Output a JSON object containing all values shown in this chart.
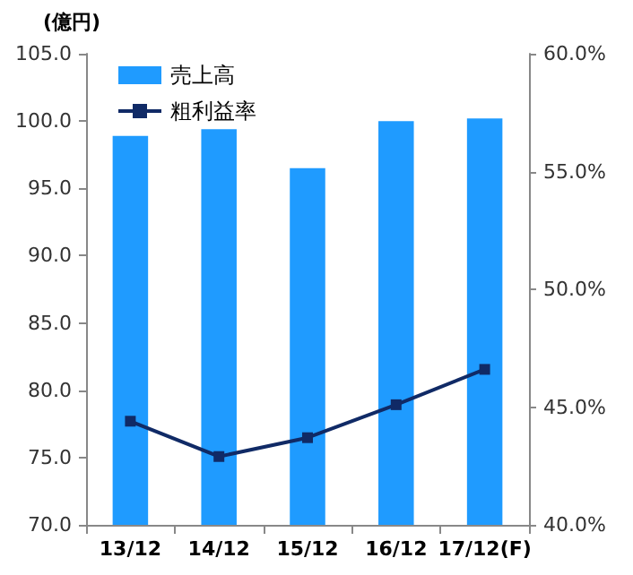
{
  "chart_data": {
    "type": "bar",
    "ylabel": "(億円)",
    "categories": [
      "13/12",
      "14/12",
      "15/12",
      "16/12",
      "17/12(F)"
    ],
    "series": [
      {
        "name": "売上高",
        "type": "bar",
        "color": "#1f9bff",
        "values": [
          98.9,
          99.4,
          96.5,
          100.0,
          100.2
        ]
      },
      {
        "name": "粗利益率",
        "type": "line",
        "axis": "y2",
        "color": "#102a66",
        "marker": "square",
        "values": [
          44.4,
          42.9,
          43.7,
          45.1,
          46.6
        ]
      }
    ],
    "ylim": [
      70,
      105
    ],
    "yticks": [
      {
        "value": 70,
        "label": "70.0"
      },
      {
        "value": 75,
        "label": "75.0"
      },
      {
        "value": 80,
        "label": "80.0"
      },
      {
        "value": 85,
        "label": "85.0"
      },
      {
        "value": 90,
        "label": "90.0"
      },
      {
        "value": 95,
        "label": "95.0"
      },
      {
        "value": 100,
        "label": "100.0"
      },
      {
        "value": 105,
        "label": "105.0"
      }
    ],
    "y2lim": [
      40,
      60
    ],
    "y2ticks": [
      {
        "value": 40,
        "label": "40.0%"
      },
      {
        "value": 45,
        "label": "45.0%"
      },
      {
        "value": 50,
        "label": "50.0%"
      },
      {
        "value": 55,
        "label": "55.0%"
      },
      {
        "value": 60,
        "label": "60.0%"
      }
    ],
    "legend": "top left",
    "grid": false
  }
}
